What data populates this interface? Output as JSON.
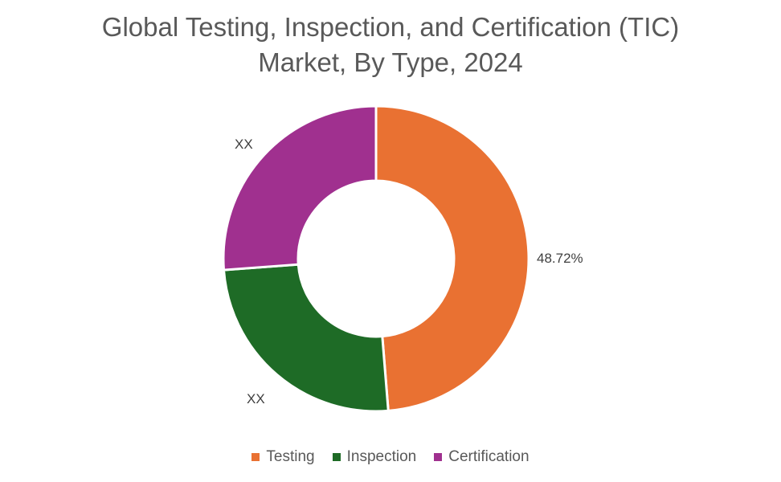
{
  "title": {
    "line1": "Global Testing, Inspection, and Certification (TIC)",
    "line2": "Market, By Type, 2024"
  },
  "chart_data": {
    "type": "pie",
    "subtype": "donut",
    "title": "Global Testing, Inspection, and Certification (TIC) Market, By Type, 2024",
    "categories": [
      "Testing",
      "Inspection",
      "Certification"
    ],
    "values": [
      48.72,
      25.1,
      26.18
    ],
    "data_labels": [
      "48.72%",
      "XX",
      "XX"
    ],
    "colors": [
      "#E97132",
      "#1E6B26",
      "#A0308F"
    ],
    "legend_position": "bottom",
    "start_angle_deg": 0,
    "direction": "clockwise"
  },
  "labels": {
    "testing": "48.72%",
    "inspection": "XX",
    "certification": "XX"
  },
  "legend": [
    {
      "label": "Testing",
      "color": "#E97132"
    },
    {
      "label": "Inspection",
      "color": "#1E6B26"
    },
    {
      "label": "Certification",
      "color": "#A0308F"
    }
  ]
}
